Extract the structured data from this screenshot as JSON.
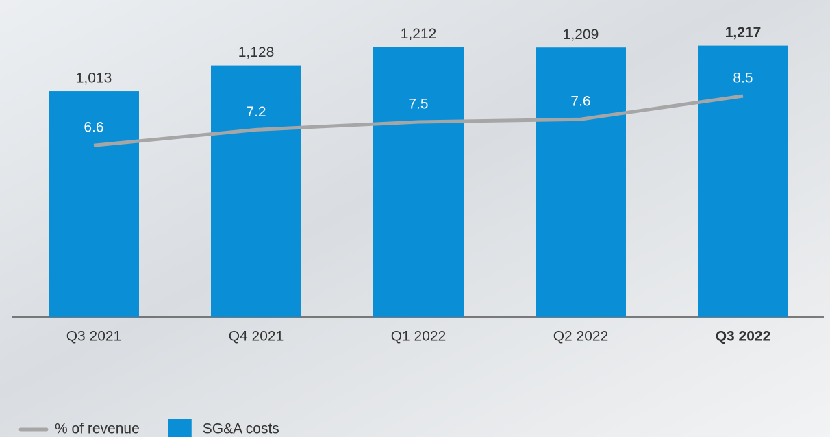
{
  "chart_data": {
    "type": "bar",
    "categories": [
      "Q3 2021",
      "Q4 2021",
      "Q1 2022",
      "Q2 2022",
      "Q3 2022"
    ],
    "series": [
      {
        "name": "SG&A costs",
        "type": "bar",
        "color": "#0a8fd6",
        "values": [
          1013,
          1128,
          1212,
          1209,
          1217
        ],
        "value_labels": [
          "1,013",
          "1,128",
          "1,212",
          "1,209",
          "1,217"
        ]
      },
      {
        "name": "% of revenue",
        "type": "line",
        "axis": "y2",
        "color": "#a6a6a6",
        "values": [
          6.6,
          7.2,
          7.5,
          7.6,
          8.5
        ]
      }
    ],
    "ylim": [
      0,
      1400
    ],
    "y2lim": [
      0,
      12
    ],
    "legend": "bottom-left"
  }
}
